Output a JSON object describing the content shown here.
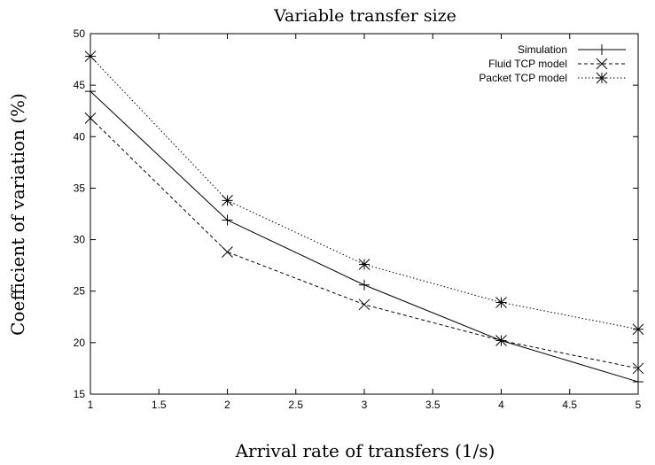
{
  "chart_data": {
    "type": "line",
    "title": "Variable transfer size",
    "xlabel": "Arrival rate of transfers (1/s)",
    "ylabel": "Coefficient of variation (%)",
    "xlim": [
      1,
      5
    ],
    "ylim": [
      15,
      50
    ],
    "xticks": [
      "1",
      "1.5",
      "2",
      "2.5",
      "3",
      "3.5",
      "4",
      "4.5",
      "5"
    ],
    "yticks": [
      "15",
      "20",
      "25",
      "30",
      "35",
      "40",
      "45",
      "50"
    ],
    "grid": false,
    "legend_position": "top-right",
    "x": [
      1,
      2,
      3,
      4,
      5
    ],
    "series": [
      {
        "name": "Simulation",
        "values": [
          44.4,
          31.9,
          25.6,
          20.2,
          16.2
        ],
        "line_style": "solid",
        "marker": "plus"
      },
      {
        "name": "Fluid TCP model",
        "values": [
          41.8,
          28.8,
          23.7,
          20.2,
          17.5
        ],
        "line_style": "dashed",
        "marker": "cross"
      },
      {
        "name": "Packet TCP model",
        "values": [
          47.8,
          33.8,
          27.6,
          23.9,
          21.3
        ],
        "line_style": "dotted",
        "marker": "star"
      }
    ]
  }
}
